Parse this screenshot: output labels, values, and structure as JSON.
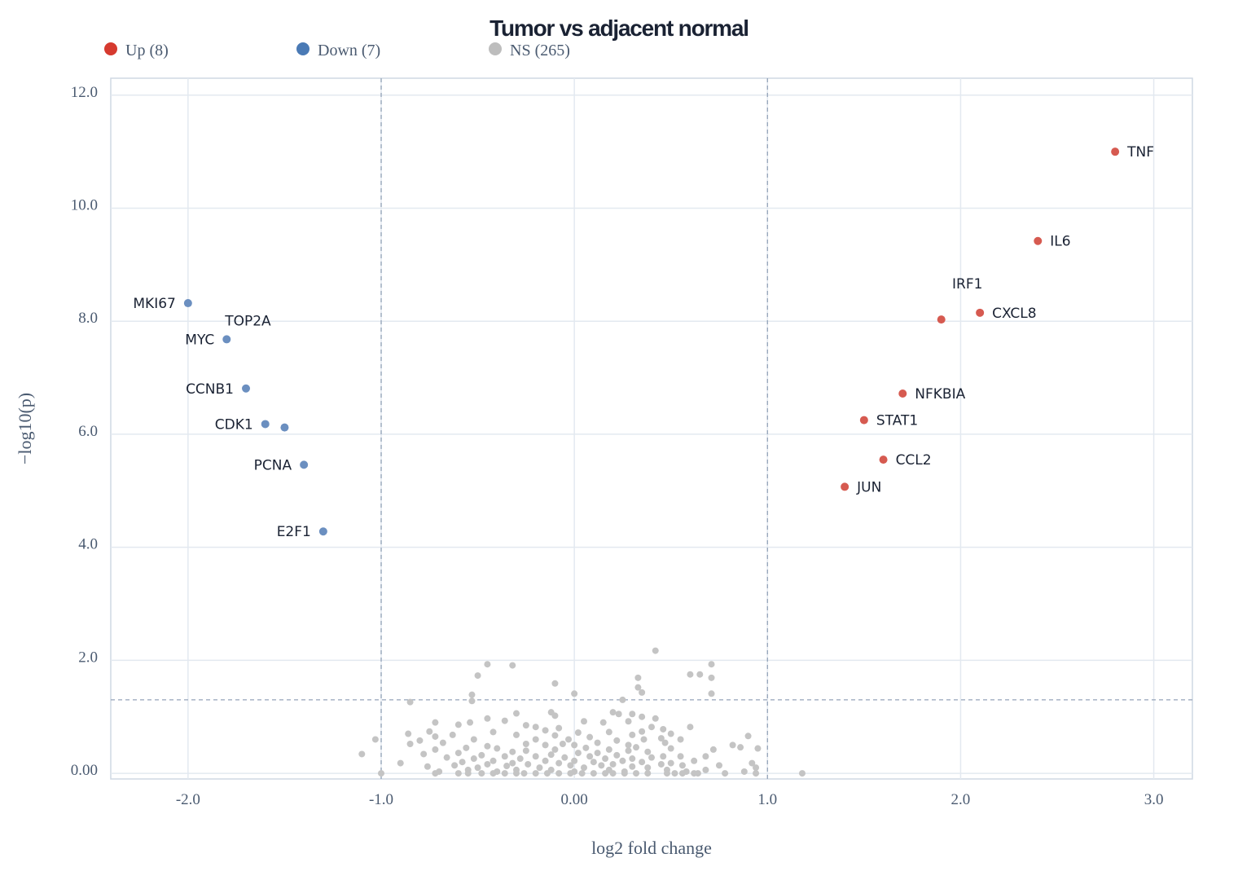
{
  "chart_data": {
    "type": "scatter",
    "title": "Tumor vs adjacent normal",
    "xlabel": "log2 fold change",
    "ylabel": "−log10(p)",
    "xlim": [
      -2.4,
      3.2
    ],
    "ylim": [
      -0.1,
      12.3
    ],
    "x_ticks": [
      {
        "value": -2.0,
        "label": "-2.0"
      },
      {
        "value": -1.0,
        "label": "-1.0"
      },
      {
        "value": 0.0,
        "label": "0.00"
      },
      {
        "value": 1.0,
        "label": "1.0"
      },
      {
        "value": 2.0,
        "label": "2.0"
      },
      {
        "value": 3.0,
        "label": "3.0"
      }
    ],
    "y_ticks": [
      {
        "value": 0,
        "label": "0.00"
      },
      {
        "value": 2,
        "label": "2.0"
      },
      {
        "value": 4,
        "label": "4.0"
      },
      {
        "value": 6,
        "label": "6.0"
      },
      {
        "value": 8,
        "label": "8.0"
      },
      {
        "value": 10,
        "label": "10.0"
      },
      {
        "value": 12,
        "label": "12.0"
      }
    ],
    "fc_thresholds": [
      -1.0,
      1.0
    ],
    "p_threshold": 1.3,
    "grid": true,
    "legend_position": "top-left",
    "legend": [
      {
        "key": "up",
        "label": "Up (8)",
        "color": "#d63a2f"
      },
      {
        "key": "down",
        "label": "Down (7)",
        "color": "#4a7ab5"
      },
      {
        "key": "ns",
        "label": "NS (265)",
        "color": "#bdbdbd"
      }
    ],
    "series": [
      {
        "name": "Up (8)",
        "color": "#d65a50",
        "points": [
          {
            "gene": "TNF",
            "x": 2.8,
            "y": 11.0,
            "label_side": "right"
          },
          {
            "gene": "IL6",
            "x": 2.4,
            "y": 9.42,
            "label_side": "right"
          },
          {
            "gene": "CXCL8",
            "x": 2.1,
            "y": 8.15,
            "label_side": "right"
          },
          {
            "gene": "IRF1",
            "x": 1.9,
            "y": 8.03,
            "label_side": "above"
          },
          {
            "gene": "NFKBIA",
            "x": 1.7,
            "y": 6.72,
            "label_side": "right"
          },
          {
            "gene": "STAT1",
            "x": 1.5,
            "y": 6.25,
            "label_side": "right"
          },
          {
            "gene": "CCL2",
            "x": 1.6,
            "y": 5.55,
            "label_side": "right"
          },
          {
            "gene": "JUN",
            "x": 1.4,
            "y": 5.07,
            "label_side": "right"
          }
        ]
      },
      {
        "name": "Down (7)",
        "color": "#6b8fc0",
        "points": [
          {
            "gene": "MKI67",
            "x": -2.0,
            "y": 8.32,
            "label_side": "left"
          },
          {
            "gene": "TOP2A",
            "x": -1.5,
            "y": 6.12,
            "label_side": "above-far"
          },
          {
            "gene": "MYC",
            "x": -1.8,
            "y": 7.68,
            "label_side": "left"
          },
          {
            "gene": "CCNB1",
            "x": -1.7,
            "y": 6.81,
            "label_side": "left"
          },
          {
            "gene": "CDK1",
            "x": -1.6,
            "y": 6.18,
            "label_side": "left"
          },
          {
            "gene": "PCNA",
            "x": -1.4,
            "y": 5.46,
            "label_side": "left"
          },
          {
            "gene": "E2F1",
            "x": -1.3,
            "y": 4.28,
            "label_side": "left"
          }
        ]
      },
      {
        "name": "NS (265)",
        "color": "#c4c4c4",
        "count": 265,
        "points": [
          {
            "x": 0.42,
            "y": 2.17
          },
          {
            "x": -0.45,
            "y": 1.93
          },
          {
            "x": -0.32,
            "y": 1.91
          },
          {
            "x": 0.71,
            "y": 1.93
          },
          {
            "x": -0.5,
            "y": 1.73
          },
          {
            "x": 0.33,
            "y": 1.69
          },
          {
            "x": 0.6,
            "y": 1.75
          },
          {
            "x": 0.65,
            "y": 1.75
          },
          {
            "x": 0.71,
            "y": 1.69
          },
          {
            "x": -0.1,
            "y": 1.59
          },
          {
            "x": 0.33,
            "y": 1.52
          },
          {
            "x": 0.35,
            "y": 1.43
          },
          {
            "x": 0.0,
            "y": 1.41
          },
          {
            "x": 0.71,
            "y": 1.41
          },
          {
            "x": -0.53,
            "y": 1.39
          },
          {
            "x": -0.85,
            "y": 1.26
          },
          {
            "x": -0.53,
            "y": 1.28
          },
          {
            "x": 0.25,
            "y": 1.3
          },
          {
            "x": -0.12,
            "y": 1.08
          },
          {
            "x": 0.2,
            "y": 1.08
          },
          {
            "x": -0.3,
            "y": 1.06
          },
          {
            "x": 0.3,
            "y": 1.05
          },
          {
            "x": -0.1,
            "y": 1.02
          },
          {
            "x": 0.23,
            "y": 1.05
          },
          {
            "x": -0.45,
            "y": 0.97
          },
          {
            "x": 0.35,
            "y": 1.0
          },
          {
            "x": 0.42,
            "y": 0.97
          },
          {
            "x": -0.72,
            "y": 0.9
          },
          {
            "x": -0.36,
            "y": 0.93
          },
          {
            "x": -0.54,
            "y": 0.9
          },
          {
            "x": 0.05,
            "y": 0.92
          },
          {
            "x": -0.25,
            "y": 0.85
          },
          {
            "x": 0.15,
            "y": 0.9
          },
          {
            "x": 0.28,
            "y": 0.92
          },
          {
            "x": 0.6,
            "y": 0.82
          },
          {
            "x": -0.08,
            "y": 0.8
          },
          {
            "x": 0.4,
            "y": 0.82
          },
          {
            "x": -0.6,
            "y": 0.86
          },
          {
            "x": -0.2,
            "y": 0.82
          },
          {
            "x": -0.75,
            "y": 0.74
          },
          {
            "x": -0.15,
            "y": 0.76
          },
          {
            "x": 0.02,
            "y": 0.72
          },
          {
            "x": 0.46,
            "y": 0.78
          },
          {
            "x": 0.5,
            "y": 0.7
          },
          {
            "x": -0.72,
            "y": 0.65
          },
          {
            "x": -0.86,
            "y": 0.7
          },
          {
            "x": -0.42,
            "y": 0.73
          },
          {
            "x": 0.18,
            "y": 0.73
          },
          {
            "x": 0.3,
            "y": 0.68
          },
          {
            "x": 0.35,
            "y": 0.74
          },
          {
            "x": 0.9,
            "y": 0.66
          },
          {
            "x": -0.63,
            "y": 0.68
          },
          {
            "x": -0.3,
            "y": 0.68
          },
          {
            "x": 0.08,
            "y": 0.64
          },
          {
            "x": -0.1,
            "y": 0.67
          },
          {
            "x": -0.52,
            "y": 0.6
          },
          {
            "x": -0.03,
            "y": 0.6
          },
          {
            "x": 0.45,
            "y": 0.62
          },
          {
            "x": 0.55,
            "y": 0.6
          },
          {
            "x": -0.8,
            "y": 0.58
          },
          {
            "x": -0.2,
            "y": 0.6
          },
          {
            "x": 0.22,
            "y": 0.58
          },
          {
            "x": 0.36,
            "y": 0.6
          },
          {
            "x": -1.03,
            "y": 0.6
          },
          {
            "x": -0.25,
            "y": 0.52
          },
          {
            "x": 0.12,
            "y": 0.54
          },
          {
            "x": 0.47,
            "y": 0.54
          },
          {
            "x": -0.68,
            "y": 0.54
          },
          {
            "x": -0.06,
            "y": 0.52
          },
          {
            "x": 0.82,
            "y": 0.5
          },
          {
            "x": 0.28,
            "y": 0.5
          },
          {
            "x": -0.45,
            "y": 0.48
          },
          {
            "x": -0.85,
            "y": 0.52
          },
          {
            "x": -0.15,
            "y": 0.5
          },
          {
            "x": 0.0,
            "y": 0.5
          },
          {
            "x": 0.32,
            "y": 0.46
          },
          {
            "x": 0.86,
            "y": 0.46
          },
          {
            "x": -0.56,
            "y": 0.45
          },
          {
            "x": -0.4,
            "y": 0.44
          },
          {
            "x": 0.06,
            "y": 0.45
          },
          {
            "x": 0.18,
            "y": 0.42
          },
          {
            "x": 0.5,
            "y": 0.44
          },
          {
            "x": 0.95,
            "y": 0.44
          },
          {
            "x": -0.72,
            "y": 0.42
          },
          {
            "x": -0.25,
            "y": 0.4
          },
          {
            "x": -0.1,
            "y": 0.42
          },
          {
            "x": 0.28,
            "y": 0.4
          },
          {
            "x": 0.72,
            "y": 0.42
          },
          {
            "x": -0.6,
            "y": 0.36
          },
          {
            "x": -0.32,
            "y": 0.38
          },
          {
            "x": 0.12,
            "y": 0.36
          },
          {
            "x": 0.38,
            "y": 0.38
          },
          {
            "x": -0.78,
            "y": 0.34
          },
          {
            "x": -0.48,
            "y": 0.32
          },
          {
            "x": -0.12,
            "y": 0.33
          },
          {
            "x": 0.02,
            "y": 0.36
          },
          {
            "x": 0.22,
            "y": 0.32
          },
          {
            "x": 0.46,
            "y": 0.3
          },
          {
            "x": -1.1,
            "y": 0.34
          },
          {
            "x": -0.36,
            "y": 0.3
          },
          {
            "x": -0.2,
            "y": 0.3
          },
          {
            "x": 0.08,
            "y": 0.3
          },
          {
            "x": 0.3,
            "y": 0.26
          },
          {
            "x": 0.55,
            "y": 0.3
          },
          {
            "x": 0.68,
            "y": 0.3
          },
          {
            "x": -0.66,
            "y": 0.28
          },
          {
            "x": -0.52,
            "y": 0.26
          },
          {
            "x": -0.28,
            "y": 0.26
          },
          {
            "x": -0.05,
            "y": 0.28
          },
          {
            "x": 0.16,
            "y": 0.26
          },
          {
            "x": 0.4,
            "y": 0.28
          },
          {
            "x": -0.42,
            "y": 0.22
          },
          {
            "x": -0.15,
            "y": 0.22
          },
          {
            "x": 0.0,
            "y": 0.22
          },
          {
            "x": 0.25,
            "y": 0.22
          },
          {
            "x": 0.35,
            "y": 0.2
          },
          {
            "x": -0.58,
            "y": 0.2
          },
          {
            "x": -0.32,
            "y": 0.18
          },
          {
            "x": -0.08,
            "y": 0.18
          },
          {
            "x": 0.1,
            "y": 0.2
          },
          {
            "x": 0.5,
            "y": 0.18
          },
          {
            "x": 0.62,
            "y": 0.22
          },
          {
            "x": -0.9,
            "y": 0.18
          },
          {
            "x": -0.24,
            "y": 0.16
          },
          {
            "x": -0.45,
            "y": 0.16
          },
          {
            "x": 0.2,
            "y": 0.16
          },
          {
            "x": 0.45,
            "y": 0.16
          },
          {
            "x": 0.92,
            "y": 0.18
          },
          {
            "x": -0.62,
            "y": 0.14
          },
          {
            "x": -0.35,
            "y": 0.13
          },
          {
            "x": -0.02,
            "y": 0.14
          },
          {
            "x": 0.14,
            "y": 0.14
          },
          {
            "x": 0.3,
            "y": 0.12
          },
          {
            "x": 0.56,
            "y": 0.14
          },
          {
            "x": 0.75,
            "y": 0.14
          },
          {
            "x": -0.76,
            "y": 0.12
          },
          {
            "x": -0.5,
            "y": 0.1
          },
          {
            "x": -0.18,
            "y": 0.1
          },
          {
            "x": 0.05,
            "y": 0.1
          },
          {
            "x": 0.38,
            "y": 0.1
          },
          {
            "x": 0.94,
            "y": 0.1
          },
          {
            "x": -0.55,
            "y": 0.06
          },
          {
            "x": -0.3,
            "y": 0.06
          },
          {
            "x": -0.12,
            "y": 0.06
          },
          {
            "x": 0.18,
            "y": 0.06
          },
          {
            "x": 0.48,
            "y": 0.06
          },
          {
            "x": 0.68,
            "y": 0.06
          },
          {
            "x": -0.7,
            "y": 0.03
          },
          {
            "x": -0.4,
            "y": 0.03
          },
          {
            "x": 0.0,
            "y": 0.03
          },
          {
            "x": 0.26,
            "y": 0.03
          },
          {
            "x": 0.58,
            "y": 0.03
          },
          {
            "x": 0.88,
            "y": 0.03
          },
          {
            "x": -1.0,
            "y": 0.0
          },
          {
            "x": -0.72,
            "y": 0.0
          },
          {
            "x": -0.6,
            "y": 0.0
          },
          {
            "x": -0.55,
            "y": 0.0
          },
          {
            "x": -0.48,
            "y": 0.0
          },
          {
            "x": -0.42,
            "y": 0.0
          },
          {
            "x": -0.36,
            "y": 0.0
          },
          {
            "x": -0.3,
            "y": 0.0
          },
          {
            "x": -0.26,
            "y": 0.0
          },
          {
            "x": -0.2,
            "y": 0.0
          },
          {
            "x": -0.14,
            "y": 0.0
          },
          {
            "x": -0.08,
            "y": 0.0
          },
          {
            "x": -0.02,
            "y": 0.0
          },
          {
            "x": 0.04,
            "y": 0.0
          },
          {
            "x": 0.1,
            "y": 0.0
          },
          {
            "x": 0.16,
            "y": 0.0
          },
          {
            "x": 0.2,
            "y": 0.0
          },
          {
            "x": 0.26,
            "y": 0.0
          },
          {
            "x": 0.32,
            "y": 0.0
          },
          {
            "x": 0.38,
            "y": 0.0
          },
          {
            "x": 0.48,
            "y": 0.0
          },
          {
            "x": 0.52,
            "y": 0.0
          },
          {
            "x": 0.56,
            "y": 0.0
          },
          {
            "x": 0.62,
            "y": 0.0
          },
          {
            "x": 0.64,
            "y": 0.0
          },
          {
            "x": 0.78,
            "y": 0.0
          },
          {
            "x": 0.94,
            "y": 0.0
          },
          {
            "x": 1.18,
            "y": 0.0
          }
        ]
      }
    ]
  }
}
